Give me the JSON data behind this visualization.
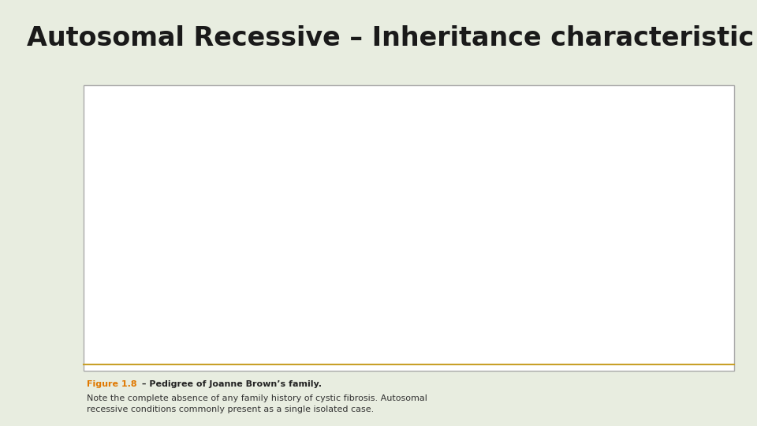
{
  "title": "Autosomal Recessive – Inheritance characteristic",
  "title_fontsize": 24,
  "title_color": "#1a1a1a",
  "bg_color_top": "#e8ede0",
  "bg_color_box": "#faf6ec",
  "bg_color_white": "#ffffff",
  "figure_caption_color": "#e07800",
  "figure_caption": "Figure 1.8",
  "caption_bold": " – Pedigree of Joanne Brown’s family.",
  "caption_text1": "Note the complete absence of any family history of cystic fibrosis. Autosomal",
  "caption_text2": "recessive conditions commonly present as a single isolated case.",
  "line_color": "#666666",
  "fill_affected": "#5a5a5a",
  "fill_normal": "#ffffff"
}
